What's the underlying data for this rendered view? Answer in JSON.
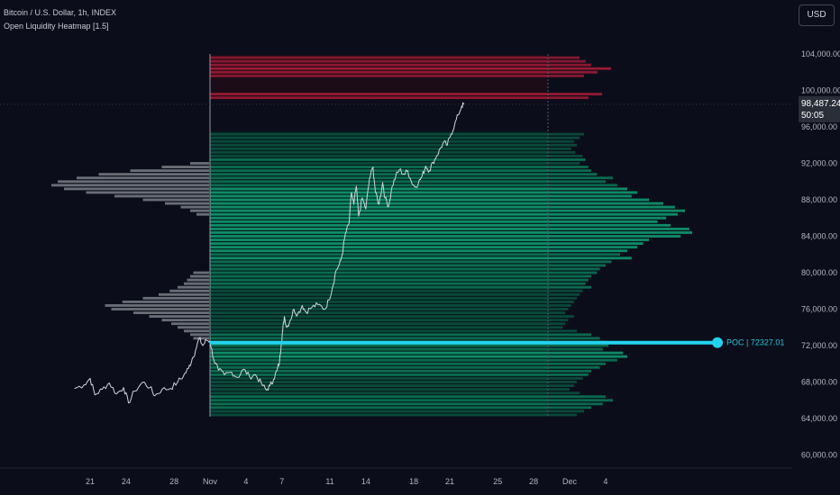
{
  "header": {
    "title": "Bitcoin / U.S. Dollar, 1h, INDEX",
    "indicator": "Open Liquidity Heatmap [1.5]"
  },
  "currency_button": "USD",
  "last_price": {
    "price": "98,487.24",
    "countdown": "50:05",
    "value": 98487.24
  },
  "poc": {
    "label": "POC | 72327.01",
    "value": 72327.01
  },
  "colors": {
    "background": "#0b0e1a",
    "price_line": "#d1d4dc",
    "left_profile": "#8a8d96",
    "ask_liquidity": "#b71c3a",
    "bid_liquidity": "#0b8f6a",
    "poc": "#22d3ee"
  },
  "chart_data": {
    "type": "line",
    "title": "Bitcoin / U.S. Dollar, 1h, INDEX",
    "ylim": [
      58000,
      106000
    ],
    "y_ticks": [
      "104,000.00",
      "100,000.00",
      "96,000.00",
      "92,000.00",
      "88,000.00",
      "84,000.00",
      "80,000.00",
      "76,000.00",
      "72,000.00",
      "68,000.00",
      "64,000.00",
      "60,000.00"
    ],
    "x_ticks": [
      "21",
      "24",
      "28",
      "Nov",
      "4",
      "7",
      "11",
      "14",
      "18",
      "21",
      "25",
      "28",
      "Dec",
      "4"
    ],
    "x_tick_days": [
      -10,
      -7,
      -3,
      0,
      3,
      6,
      10,
      13,
      17,
      20,
      24,
      27,
      30,
      33
    ],
    "series": [
      {
        "points": [
          [
            -11.3,
            67300
          ],
          [
            -10.5,
            67700
          ],
          [
            -10.0,
            68400
          ],
          [
            -9.6,
            66600
          ],
          [
            -9.0,
            67200
          ],
          [
            -8.4,
            67900
          ],
          [
            -7.8,
            66700
          ],
          [
            -7.2,
            67400
          ],
          [
            -6.8,
            65700
          ],
          [
            -6.3,
            67000
          ],
          [
            -5.6,
            68000
          ],
          [
            -5.0,
            67400
          ],
          [
            -4.6,
            66500
          ],
          [
            -4.0,
            67200
          ],
          [
            -3.3,
            67300
          ],
          [
            -2.7,
            68000
          ],
          [
            -2.2,
            68700
          ],
          [
            -1.8,
            69500
          ],
          [
            -1.5,
            70500
          ],
          [
            -1.2,
            71500
          ],
          [
            -0.9,
            72800
          ],
          [
            -0.6,
            72000
          ],
          [
            -0.3,
            72600
          ],
          [
            0.0,
            72500
          ],
          [
            0.3,
            70500
          ],
          [
            0.7,
            69300
          ],
          [
            1.2,
            68800
          ],
          [
            1.8,
            69100
          ],
          [
            2.3,
            68500
          ],
          [
            2.8,
            69400
          ],
          [
            3.3,
            68600
          ],
          [
            3.8,
            68800
          ],
          [
            4.3,
            67800
          ],
          [
            4.7,
            67100
          ],
          [
            5.0,
            67600
          ],
          [
            5.3,
            68300
          ],
          [
            5.6,
            69300
          ],
          [
            5.8,
            70200
          ],
          [
            5.95,
            72300
          ],
          [
            6.05,
            73500
          ],
          [
            6.2,
            75200
          ],
          [
            6.4,
            74000
          ],
          [
            6.7,
            74800
          ],
          [
            7.0,
            76000
          ],
          [
            7.3,
            75400
          ],
          [
            7.7,
            76400
          ],
          [
            8.0,
            75700
          ],
          [
            8.5,
            76200
          ],
          [
            9.0,
            76500
          ],
          [
            9.6,
            76000
          ],
          [
            9.9,
            77000
          ],
          [
            10.2,
            78300
          ],
          [
            10.5,
            80200
          ],
          [
            10.8,
            80900
          ],
          [
            11.0,
            81800
          ],
          [
            11.3,
            84300
          ],
          [
            11.6,
            85400
          ],
          [
            11.8,
            88800
          ],
          [
            12.0,
            87500
          ],
          [
            12.2,
            89500
          ],
          [
            12.4,
            86200
          ],
          [
            12.7,
            88200
          ],
          [
            13.0,
            87000
          ],
          [
            13.3,
            90300
          ],
          [
            13.6,
            91600
          ],
          [
            13.8,
            88800
          ],
          [
            14.1,
            87500
          ],
          [
            14.4,
            89900
          ],
          [
            14.6,
            88200
          ],
          [
            14.9,
            87300
          ],
          [
            15.2,
            89500
          ],
          [
            15.5,
            90600
          ],
          [
            15.8,
            91300
          ],
          [
            16.2,
            90800
          ],
          [
            16.5,
            91200
          ],
          [
            16.8,
            90000
          ],
          [
            17.1,
            89400
          ],
          [
            17.4,
            89900
          ],
          [
            17.7,
            90600
          ],
          [
            18.0,
            91700
          ],
          [
            18.3,
            91200
          ],
          [
            18.6,
            92100
          ],
          [
            18.9,
            92800
          ],
          [
            19.2,
            93600
          ],
          [
            19.5,
            94300
          ],
          [
            19.8,
            94000
          ],
          [
            20.1,
            95200
          ],
          [
            20.4,
            96200
          ],
          [
            20.7,
            97300
          ],
          [
            21.0,
            98300
          ],
          [
            21.2,
            98487
          ]
        ]
      }
    ],
    "left_volume_profile": {
      "bin_size": 400,
      "bins": [
        [
          92000,
          0.12
        ],
        [
          91600,
          0.3
        ],
        [
          91200,
          0.5
        ],
        [
          90800,
          0.7
        ],
        [
          90400,
          0.84
        ],
        [
          90000,
          0.96
        ],
        [
          89600,
          1.0
        ],
        [
          89200,
          0.92
        ],
        [
          88800,
          0.78
        ],
        [
          88400,
          0.6
        ],
        [
          88000,
          0.42
        ],
        [
          87600,
          0.28
        ],
        [
          87200,
          0.18
        ],
        [
          86800,
          0.12
        ],
        [
          86400,
          0.08
        ],
        [
          80000,
          0.1
        ],
        [
          79600,
          0.12
        ],
        [
          79200,
          0.14
        ],
        [
          78800,
          0.16
        ],
        [
          78400,
          0.2
        ],
        [
          78000,
          0.25
        ],
        [
          77600,
          0.32
        ],
        [
          77200,
          0.42
        ],
        [
          76800,
          0.55
        ],
        [
          76400,
          0.66
        ],
        [
          76000,
          0.62
        ],
        [
          75600,
          0.48
        ],
        [
          75200,
          0.38
        ],
        [
          74800,
          0.3
        ],
        [
          74400,
          0.24
        ],
        [
          74000,
          0.2
        ],
        [
          73600,
          0.16
        ],
        [
          73200,
          0.12
        ],
        [
          72800,
          0.1
        ]
      ]
    },
    "ask_liquidity_levels": [
      [
        103600,
        0.35
      ],
      [
        103200,
        0.42
      ],
      [
        102800,
        0.48
      ],
      [
        102400,
        0.7
      ],
      [
        102000,
        0.55
      ],
      [
        101600,
        0.4
      ],
      [
        99600,
        0.6
      ],
      [
        99200,
        0.45
      ]
    ],
    "bid_liquidity_levels": [
      [
        95200,
        0.25
      ],
      [
        94800,
        0.22
      ],
      [
        94400,
        0.18
      ],
      [
        94000,
        0.2
      ],
      [
        93600,
        0.16
      ],
      [
        93200,
        0.19
      ],
      [
        92800,
        0.24
      ],
      [
        92400,
        0.26
      ],
      [
        92000,
        0.22
      ],
      [
        91600,
        0.28
      ],
      [
        91200,
        0.3
      ],
      [
        90800,
        0.34
      ],
      [
        90400,
        0.45
      ],
      [
        90000,
        0.4
      ],
      [
        89600,
        0.48
      ],
      [
        89200,
        0.55
      ],
      [
        88800,
        0.62
      ],
      [
        88400,
        0.58
      ],
      [
        88000,
        0.7
      ],
      [
        87600,
        0.8
      ],
      [
        87200,
        0.88
      ],
      [
        86800,
        0.95
      ],
      [
        86400,
        0.9
      ],
      [
        86000,
        0.82
      ],
      [
        85600,
        0.76
      ],
      [
        85200,
        0.85
      ],
      [
        84800,
        0.98
      ],
      [
        84400,
        1.0
      ],
      [
        84000,
        0.92
      ],
      [
        83600,
        0.7
      ],
      [
        83200,
        0.66
      ],
      [
        82800,
        0.62
      ],
      [
        82400,
        0.55
      ],
      [
        82000,
        0.5
      ],
      [
        81600,
        0.58
      ],
      [
        81200,
        0.44
      ],
      [
        80800,
        0.4
      ],
      [
        80400,
        0.36
      ],
      [
        80000,
        0.34
      ],
      [
        79600,
        0.3
      ],
      [
        79200,
        0.28
      ],
      [
        78800,
        0.26
      ],
      [
        78400,
        0.3
      ],
      [
        78000,
        0.24
      ],
      [
        77600,
        0.22
      ],
      [
        77200,
        0.2
      ],
      [
        76800,
        0.18
      ],
      [
        76400,
        0.16
      ],
      [
        76000,
        0.14
      ],
      [
        75600,
        0.12
      ],
      [
        75200,
        0.18
      ],
      [
        74800,
        0.14
      ],
      [
        74400,
        0.12
      ],
      [
        74000,
        0.1
      ],
      [
        73600,
        0.2
      ],
      [
        73200,
        0.3
      ],
      [
        72800,
        0.36
      ],
      [
        72400,
        0.4
      ],
      [
        72000,
        0.42
      ],
      [
        71600,
        0.38
      ],
      [
        71200,
        0.52
      ],
      [
        70800,
        0.55
      ],
      [
        70400,
        0.48
      ],
      [
        70000,
        0.4
      ],
      [
        69600,
        0.36
      ],
      [
        69200,
        0.3
      ],
      [
        68800,
        0.28
      ],
      [
        68400,
        0.24
      ],
      [
        68000,
        0.2
      ],
      [
        67600,
        0.18
      ],
      [
        67200,
        0.15
      ],
      [
        66800,
        0.22
      ],
      [
        66400,
        0.4
      ],
      [
        66000,
        0.45
      ],
      [
        65600,
        0.38
      ],
      [
        65200,
        0.3
      ],
      [
        64800,
        0.25
      ],
      [
        64400,
        0.2
      ]
    ]
  }
}
